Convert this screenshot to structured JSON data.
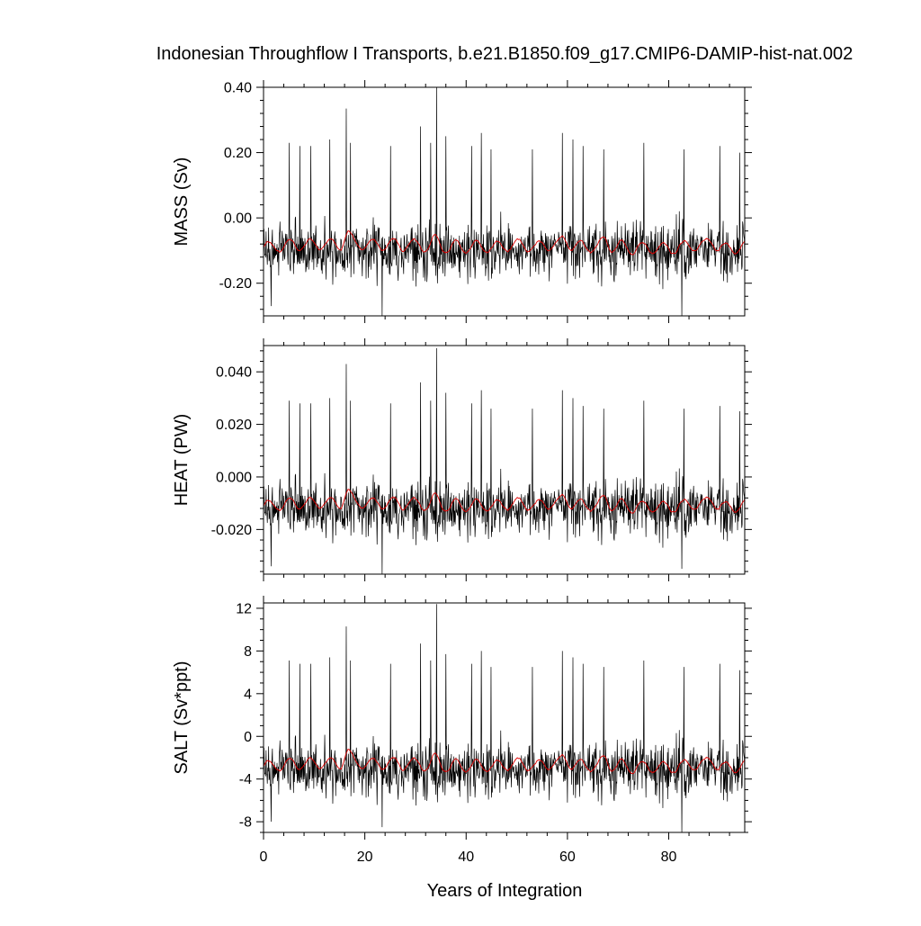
{
  "chart_data": {
    "type": "line",
    "title": "Indonesian Throughflow I Transports, b.e21.B1850.f09_g17.CMIP6-DAMIP-hist-nat.002",
    "xlabel": "Years of Integration",
    "xlim": [
      0,
      95
    ],
    "x_ticks": [
      0,
      20,
      40,
      60,
      80
    ],
    "x_tick_labels": [
      "0",
      "20",
      "40",
      "60",
      "80"
    ],
    "x_minor_step": 4,
    "grid": false,
    "panels": [
      {
        "ylabel": "MASS (Sv)",
        "ylim": [
          -0.3,
          0.4
        ],
        "y_ticks": [
          -0.2,
          0.0,
          0.2,
          0.4
        ],
        "y_tick_labels": [
          "-0.20",
          "0.00",
          "0.20",
          "0.40"
        ],
        "y_minor_step": 0.04,
        "raw_baseline": -0.1,
        "raw_noise": 0.075,
        "raw_spikes": [
          [
            5.1,
            0.23
          ],
          [
            7.2,
            0.22
          ],
          [
            9.3,
            0.22
          ],
          [
            13.1,
            0.24
          ],
          [
            16.3,
            0.335
          ],
          [
            17.2,
            0.23
          ],
          [
            25.1,
            0.22
          ],
          [
            31.0,
            0.28
          ],
          [
            33.0,
            0.23
          ],
          [
            34.2,
            0.405
          ],
          [
            36.0,
            0.25
          ],
          [
            41.1,
            0.22
          ],
          [
            43.0,
            0.26
          ],
          [
            44.9,
            0.21
          ],
          [
            53.1,
            0.21
          ],
          [
            59.0,
            0.26
          ],
          [
            61.1,
            0.24
          ],
          [
            63.1,
            0.22
          ],
          [
            67.2,
            0.21
          ],
          [
            75.1,
            0.23
          ],
          [
            83.0,
            0.21
          ],
          [
            90.1,
            0.22
          ],
          [
            94.0,
            0.2
          ]
        ],
        "raw_dips": [
          [
            23.4,
            -0.3
          ],
          [
            82.6,
            -0.3
          ],
          [
            1.5,
            -0.27
          ]
        ],
        "smooth_baseline": -0.09,
        "smooth_amp": 0.018,
        "smooth_peaks": [
          [
            16.5,
            0.06
          ],
          [
            34.0,
            0.04
          ],
          [
            59.5,
            0.04
          ],
          [
            67.5,
            0.04
          ],
          [
            88.5,
            0.04
          ]
        ],
        "series": [
          {
            "name": "",
            "color": "#000000"
          },
          {
            "name": "",
            "color": "#e00000"
          }
        ]
      },
      {
        "ylabel": "HEAT (PW)",
        "ylim": [
          -0.037,
          0.05
        ],
        "y_ticks": [
          -0.02,
          0.0,
          0.02,
          0.04
        ],
        "y_tick_labels": [
          "-0.020",
          "0.000",
          "0.020",
          "0.040"
        ],
        "y_minor_step": 0.004,
        "raw_baseline": -0.012,
        "raw_noise": 0.0095,
        "raw_spikes": [
          [
            5.1,
            0.029
          ],
          [
            7.2,
            0.028
          ],
          [
            9.3,
            0.028
          ],
          [
            13.1,
            0.03
          ],
          [
            16.3,
            0.043
          ],
          [
            17.2,
            0.029
          ],
          [
            25.1,
            0.028
          ],
          [
            31.0,
            0.036
          ],
          [
            33.0,
            0.029
          ],
          [
            34.2,
            0.049
          ],
          [
            36.0,
            0.032
          ],
          [
            41.1,
            0.028
          ],
          [
            43.0,
            0.033
          ],
          [
            44.9,
            0.026
          ],
          [
            53.1,
            0.026
          ],
          [
            59.0,
            0.033
          ],
          [
            61.1,
            0.03
          ],
          [
            63.1,
            0.027
          ],
          [
            67.2,
            0.026
          ],
          [
            75.1,
            0.029
          ],
          [
            83.0,
            0.026
          ],
          [
            90.1,
            0.027
          ],
          [
            94.0,
            0.025
          ]
        ],
        "raw_dips": [
          [
            23.4,
            -0.037
          ],
          [
            82.6,
            -0.035
          ],
          [
            1.5,
            -0.034
          ]
        ],
        "smooth_baseline": -0.011,
        "smooth_amp": 0.0022,
        "smooth_peaks": [
          [
            16.5,
            0.0075
          ],
          [
            34.0,
            0.005
          ],
          [
            59.5,
            0.005
          ],
          [
            67.5,
            0.005
          ],
          [
            88.5,
            0.005
          ]
        ],
        "series": [
          {
            "name": "",
            "color": "#000000"
          },
          {
            "name": "",
            "color": "#e00000"
          }
        ]
      },
      {
        "ylabel": "SALT (Sv*ppt)",
        "ylim": [
          -9,
          12.5
        ],
        "y_ticks": [
          -8,
          -4,
          0,
          4,
          8,
          12
        ],
        "y_tick_labels": [
          "-8",
          "-4",
          "0",
          "4",
          "8",
          "12"
        ],
        "y_minor_step": 1,
        "raw_baseline": -3.1,
        "raw_noise": 2.3,
        "raw_spikes": [
          [
            5.1,
            7.1
          ],
          [
            7.2,
            6.8
          ],
          [
            9.3,
            6.8
          ],
          [
            13.1,
            7.4
          ],
          [
            16.3,
            10.3
          ],
          [
            17.2,
            7.1
          ],
          [
            25.1,
            6.8
          ],
          [
            31.0,
            8.7
          ],
          [
            33.0,
            7.1
          ],
          [
            34.2,
            12.4
          ],
          [
            36.0,
            7.7
          ],
          [
            41.1,
            6.8
          ],
          [
            43.0,
            8.0
          ],
          [
            44.9,
            6.5
          ],
          [
            53.1,
            6.5
          ],
          [
            59.0,
            8.0
          ],
          [
            61.1,
            7.4
          ],
          [
            63.1,
            6.8
          ],
          [
            67.2,
            6.5
          ],
          [
            75.1,
            7.1
          ],
          [
            83.0,
            6.5
          ],
          [
            90.1,
            6.8
          ],
          [
            94.0,
            6.2
          ]
        ],
        "raw_dips": [
          [
            23.4,
            -8.5
          ],
          [
            82.6,
            -9.0
          ],
          [
            1.5,
            -8.0
          ]
        ],
        "smooth_baseline": -2.8,
        "smooth_amp": 0.55,
        "smooth_peaks": [
          [
            16.5,
            1.9
          ],
          [
            34.0,
            1.25
          ],
          [
            59.5,
            1.25
          ],
          [
            67.5,
            1.25
          ],
          [
            88.5,
            1.25
          ]
        ],
        "series": [
          {
            "name": "",
            "color": "#000000"
          },
          {
            "name": "",
            "color": "#e00000"
          }
        ]
      }
    ]
  }
}
